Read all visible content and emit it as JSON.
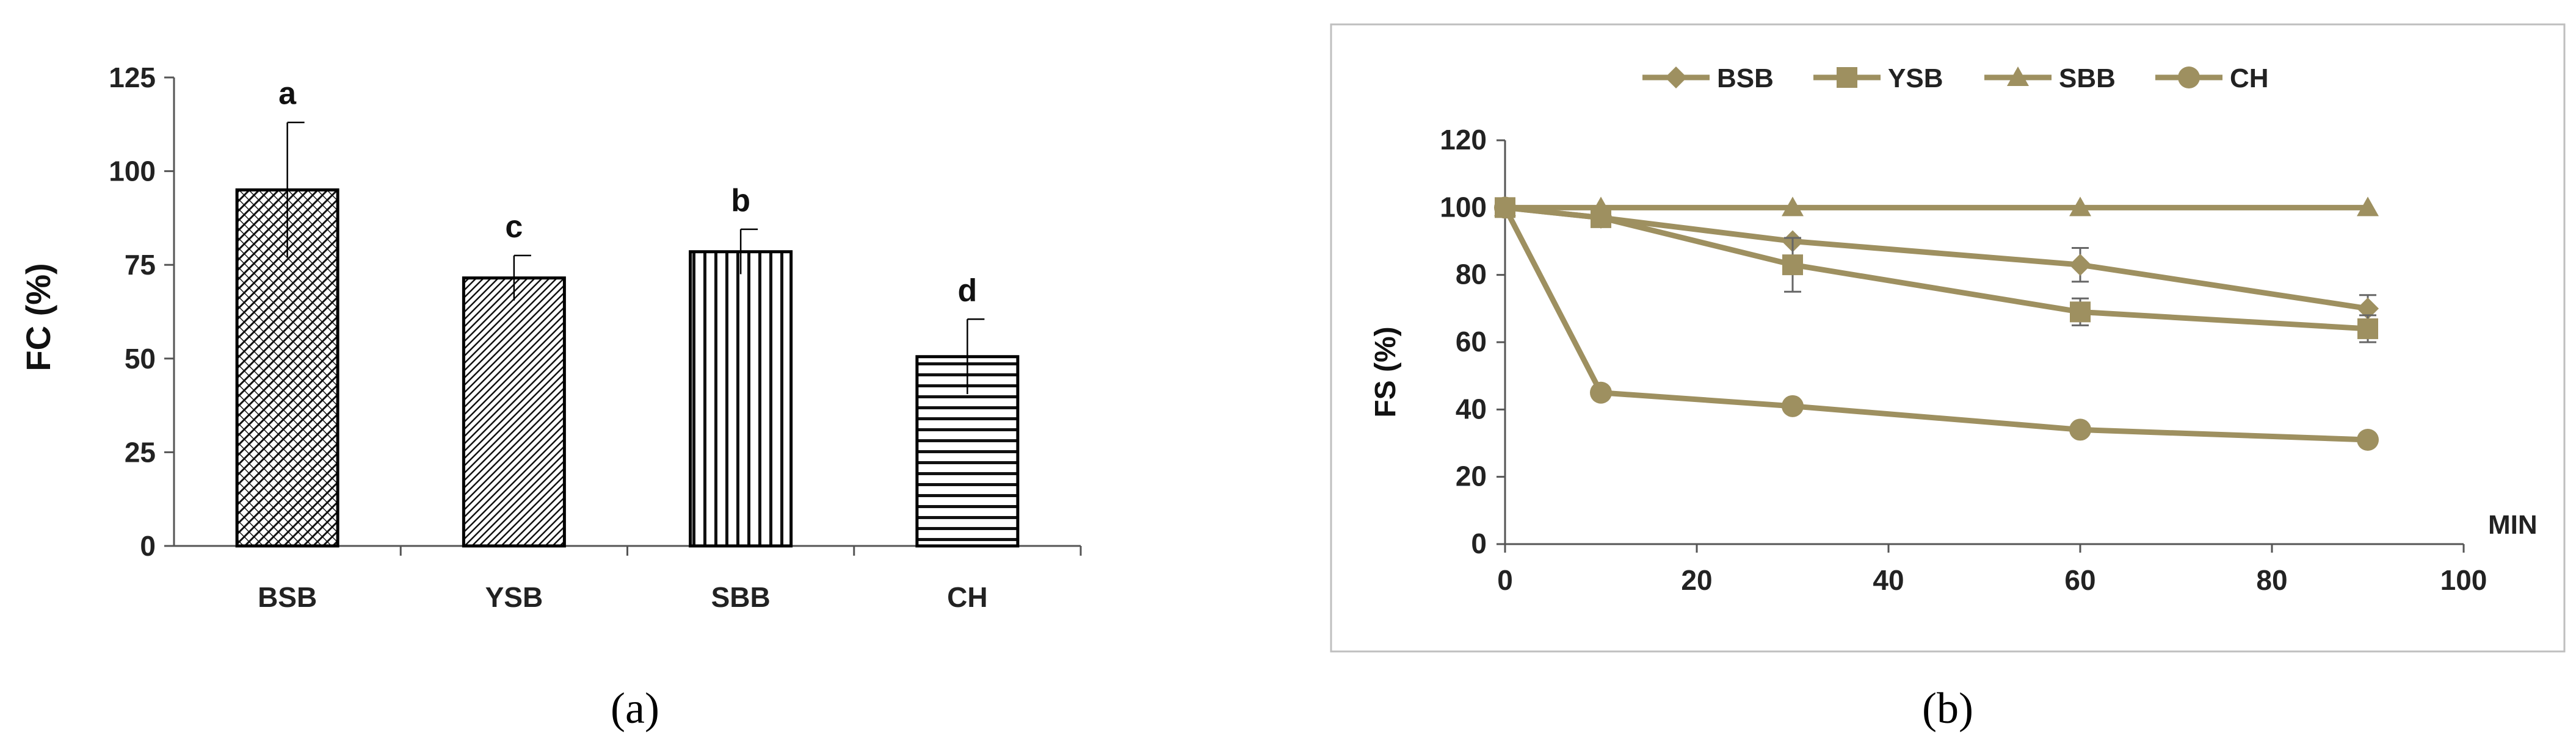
{
  "colors": {
    "line": "#9e9060",
    "grid": "#d0d0d0",
    "axis": "#555555",
    "frame": "#bfbfbf"
  },
  "chart_data": [
    {
      "type": "bar",
      "caption": "(a)",
      "ylabel": "FC (%)",
      "xlabel": "",
      "ylim": [
        0,
        125
      ],
      "yticks": [
        "0",
        "25",
        "50",
        "75",
        "100",
        "125"
      ],
      "categories": [
        "BSB",
        "YSB",
        "SBB",
        "CH"
      ],
      "values": [
        95,
        71.5,
        78.5,
        50.5
      ],
      "errors": [
        18,
        6,
        6,
        10
      ],
      "letters": [
        "a",
        "c",
        "b",
        "d"
      ],
      "patterns": [
        "diagonal-cross",
        "diagonal",
        "vertical",
        "horizontal"
      ],
      "grid": false
    },
    {
      "type": "line",
      "caption": "(b)",
      "ylabel": "FS (%)",
      "xlabel": "MIN",
      "xlim": [
        0,
        100
      ],
      "ylim": [
        0,
        120
      ],
      "xticks": [
        "0",
        "20",
        "40",
        "60",
        "80",
        "100"
      ],
      "yticks": [
        "0",
        "20",
        "40",
        "60",
        "80",
        "100",
        "120"
      ],
      "legend_position": "top",
      "grid": false,
      "series": [
        {
          "name": "BSB",
          "marker": "diamond",
          "x": [
            0,
            10,
            30,
            60,
            90
          ],
          "y": [
            100,
            97,
            90,
            83,
            70
          ],
          "err": [
            0,
            0,
            0,
            5,
            4
          ]
        },
        {
          "name": "YSB",
          "marker": "square",
          "x": [
            0,
            10,
            30,
            60,
            90
          ],
          "y": [
            100,
            97,
            83,
            69,
            64
          ],
          "err": [
            0,
            0,
            8,
            4,
            4
          ]
        },
        {
          "name": "SBB",
          "marker": "triangle",
          "x": [
            0,
            10,
            30,
            60,
            90
          ],
          "y": [
            100,
            100,
            100,
            100,
            100
          ],
          "err": [
            0,
            0,
            0,
            0,
            0
          ]
        },
        {
          "name": "CH",
          "marker": "circle",
          "x": [
            0,
            10,
            30,
            60,
            90
          ],
          "y": [
            100,
            45,
            41,
            34,
            31
          ],
          "err": [
            0,
            0,
            0,
            0,
            0
          ]
        }
      ]
    }
  ]
}
